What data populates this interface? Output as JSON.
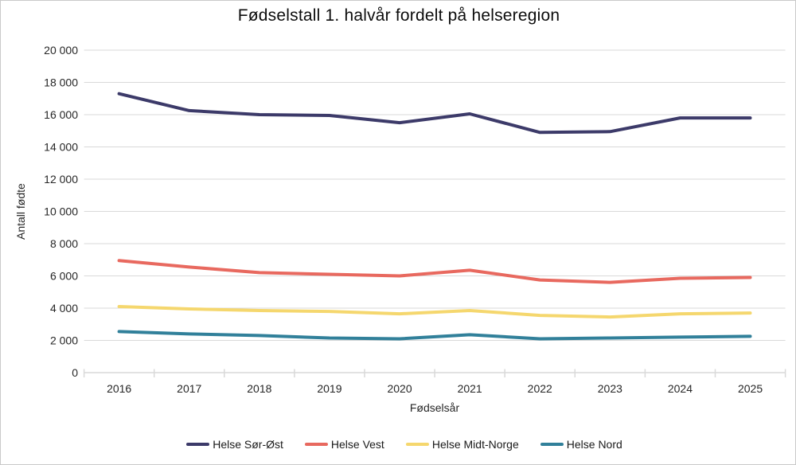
{
  "chart_data": {
    "type": "line",
    "title": "Fødselstall 1. halvår fordelt på helseregion",
    "xlabel": "Fødselsår",
    "ylabel": "Antall fødte",
    "categories": [
      "2016",
      "2017",
      "2018",
      "2019",
      "2020",
      "2021",
      "2022",
      "2023",
      "2024",
      "2025"
    ],
    "series": [
      {
        "name": "Helse Sør-Øst",
        "color": "#3C3A69",
        "values": [
          17300,
          16250,
          16000,
          15950,
          15500,
          16050,
          14900,
          14950,
          15800,
          15800
        ]
      },
      {
        "name": "Helse Vest",
        "color": "#E8695F",
        "values": [
          6950,
          6550,
          6200,
          6100,
          6000,
          6350,
          5750,
          5600,
          5850,
          5900
        ]
      },
      {
        "name": "Helse Midt-Norge",
        "color": "#F5D76E",
        "values": [
          4100,
          3950,
          3850,
          3800,
          3650,
          3850,
          3550,
          3450,
          3650,
          3700
        ]
      },
      {
        "name": "Helse Nord",
        "color": "#31809A",
        "values": [
          2550,
          2400,
          2300,
          2150,
          2100,
          2350,
          2100,
          2150,
          2200,
          2250
        ]
      }
    ],
    "ylim": [
      0,
      20000
    ],
    "ytick_step": 2000,
    "ytick_labels": [
      "0",
      "2 000",
      "4 000",
      "6 000",
      "8 000",
      "10 000",
      "12 000",
      "14 000",
      "16 000",
      "18 000",
      "20 000"
    ],
    "grid": "horizontal",
    "legend_position": "bottom"
  },
  "style": {
    "grid_color": "#D9D9D9",
    "axis_color": "#D9D9D9",
    "tick_text_color": "#262626",
    "border_color": "#C9C9C9",
    "background": "#FFFFFF"
  }
}
